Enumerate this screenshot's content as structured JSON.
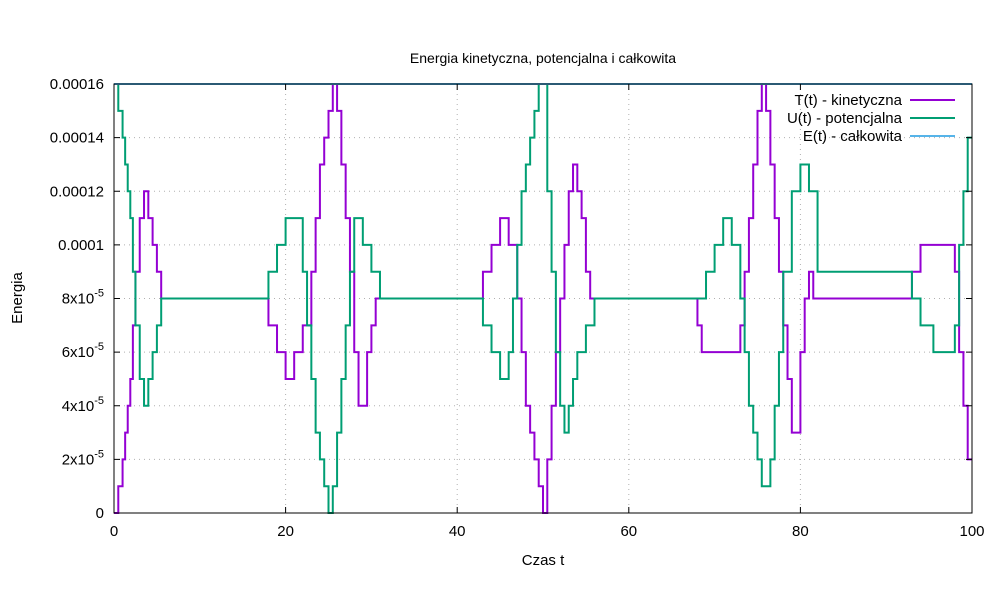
{
  "chart_data": {
    "type": "line",
    "title": "Energia kinetyczna, potencjalna i całkowita",
    "xlabel": "Czas t",
    "ylabel": "Energia",
    "xlim": [
      0,
      100
    ],
    "ylim": [
      0,
      0.00016
    ],
    "grid": true,
    "legend_position": "top-right",
    "x_ticks": [
      0,
      20,
      40,
      60,
      80,
      100
    ],
    "x_tick_labels": [
      "0",
      "20",
      "40",
      "60",
      "80",
      "100"
    ],
    "y_ticks": [
      0,
      2e-05,
      4e-05,
      6e-05,
      8e-05,
      0.0001,
      0.00012,
      0.00014,
      0.00016
    ],
    "y_tick_labels": [
      {
        "base": "0",
        "exp": ""
      },
      {
        "base": "2x10",
        "exp": "-5"
      },
      {
        "base": "4x10",
        "exp": "-5"
      },
      {
        "base": "6x10",
        "exp": "-5"
      },
      {
        "base": "8x10",
        "exp": "-5"
      },
      {
        "base": "0.0001",
        "exp": ""
      },
      {
        "base": "0.00012",
        "exp": ""
      },
      {
        "base": "0.00014",
        "exp": ""
      },
      {
        "base": "0.00016",
        "exp": ""
      }
    ],
    "series": [
      {
        "name": "T(t) - kinetyczna",
        "color": "#9400d3",
        "x": [
          0,
          0.5,
          1,
          1.3,
          1.6,
          1.9,
          2.2,
          2.5,
          3,
          3.5,
          4,
          4.5,
          5,
          5.5,
          6,
          6.5,
          18,
          19,
          19.5,
          20,
          20.5,
          21,
          22,
          23,
          23.5,
          24,
          24.5,
          25,
          25.5,
          26,
          26.5,
          27,
          27.5,
          28,
          28.5,
          29,
          29.5,
          30,
          30.5,
          31,
          31.5,
          43,
          44,
          45,
          46,
          47,
          47.5,
          48,
          48.5,
          49,
          49.5,
          50,
          50.5,
          51,
          51.5,
          52,
          52.5,
          53,
          53.5,
          54,
          54.5,
          55,
          55.5,
          56,
          56.5,
          68,
          68.5,
          70,
          73,
          73.5,
          74,
          74.5,
          75,
          75.5,
          76,
          76.5,
          77,
          77.5,
          78,
          78.5,
          79,
          79.5,
          80,
          80.5,
          81,
          81.5,
          82.5,
          93,
          94,
          95,
          98,
          98.5,
          99,
          99.5,
          100
        ],
        "values": [
          0,
          1e-05,
          2e-05,
          3e-05,
          4e-05,
          5e-05,
          7e-05,
          9e-05,
          0.00011,
          0.00012,
          0.00011,
          0.0001,
          9e-05,
          8e-05,
          8e-05,
          8e-05,
          7e-05,
          6e-05,
          6e-05,
          5e-05,
          5e-05,
          6e-05,
          7e-05,
          9e-05,
          0.00011,
          0.00013,
          0.00014,
          0.00015,
          0.00016,
          0.00015,
          0.00013,
          0.00011,
          9e-05,
          6e-05,
          4e-05,
          4e-05,
          6e-05,
          7e-05,
          8e-05,
          8e-05,
          8e-05,
          9e-05,
          0.0001,
          0.00011,
          0.0001,
          8e-05,
          6e-05,
          4e-05,
          3e-05,
          2e-05,
          1e-05,
          0,
          2e-05,
          4e-05,
          6e-05,
          8e-05,
          0.0001,
          0.00012,
          0.00013,
          0.00012,
          0.00011,
          9e-05,
          8e-05,
          8e-05,
          8e-05,
          7e-05,
          6e-05,
          6e-05,
          7e-05,
          9e-05,
          0.00011,
          0.00013,
          0.00015,
          0.00016,
          0.00015,
          0.00013,
          0.00011,
          9e-05,
          7e-05,
          5e-05,
          3e-05,
          3e-05,
          6e-05,
          8e-05,
          9e-05,
          8e-05,
          8e-05,
          9e-05,
          0.0001,
          0.0001,
          9e-05,
          6e-05,
          4e-05,
          2e-05,
          2e-05
        ]
      },
      {
        "name": "U(t) - potencjalna",
        "color": "#009e73",
        "x": [
          0,
          0.5,
          1,
          1.3,
          1.6,
          1.9,
          2.2,
          2.5,
          3,
          3.5,
          4,
          4.5,
          5,
          5.5,
          6,
          6.5,
          18,
          19,
          20,
          22,
          22.5,
          23,
          23.5,
          24,
          24.5,
          25,
          25.5,
          26,
          26.5,
          27,
          27.5,
          28,
          29,
          30,
          31,
          31.5,
          43,
          44,
          45,
          46,
          46.5,
          47,
          47.5,
          48,
          48.5,
          49,
          49.5,
          50,
          50.5,
          51,
          51.5,
          52,
          52.5,
          53,
          53.5,
          54,
          55,
          56,
          56.5,
          68,
          69,
          70,
          71,
          72,
          73,
          73.5,
          74,
          74.5,
          75,
          75.5,
          76,
          76.5,
          77,
          77.5,
          78,
          79,
          80,
          81,
          82,
          93,
          94,
          95.5,
          98,
          98.5,
          99,
          99.5
        ],
        "values": [
          0.00016,
          0.00015,
          0.00014,
          0.00013,
          0.00012,
          0.00011,
          9e-05,
          7e-05,
          5e-05,
          4e-05,
          5e-05,
          6e-05,
          7e-05,
          8e-05,
          8e-05,
          8e-05,
          9e-05,
          0.0001,
          0.00011,
          9e-05,
          7e-05,
          5e-05,
          3e-05,
          2e-05,
          1e-05,
          0,
          1e-05,
          3e-05,
          5e-05,
          7e-05,
          9e-05,
          0.00011,
          0.0001,
          9e-05,
          8e-05,
          8e-05,
          7e-05,
          6e-05,
          5e-05,
          6e-05,
          8e-05,
          0.0001,
          0.00012,
          0.00013,
          0.00014,
          0.00015,
          0.00016,
          0.00016,
          0.00012,
          9e-05,
          6e-05,
          4e-05,
          3e-05,
          4e-05,
          5e-05,
          6e-05,
          7e-05,
          8e-05,
          8e-05,
          8e-05,
          9e-05,
          0.0001,
          0.00011,
          0.0001,
          8e-05,
          6e-05,
          4e-05,
          3e-05,
          2e-05,
          1e-05,
          1e-05,
          2e-05,
          4e-05,
          6e-05,
          9e-05,
          0.00012,
          0.00013,
          0.00012,
          9e-05,
          8e-05,
          7e-05,
          6e-05,
          7e-05,
          0.0001,
          0.00012,
          0.00014
        ]
      },
      {
        "name": "E(t) - całkowita",
        "color": "#56b4e9",
        "x": [
          0,
          100
        ],
        "values": [
          0.00016,
          0.00016
        ]
      }
    ]
  }
}
